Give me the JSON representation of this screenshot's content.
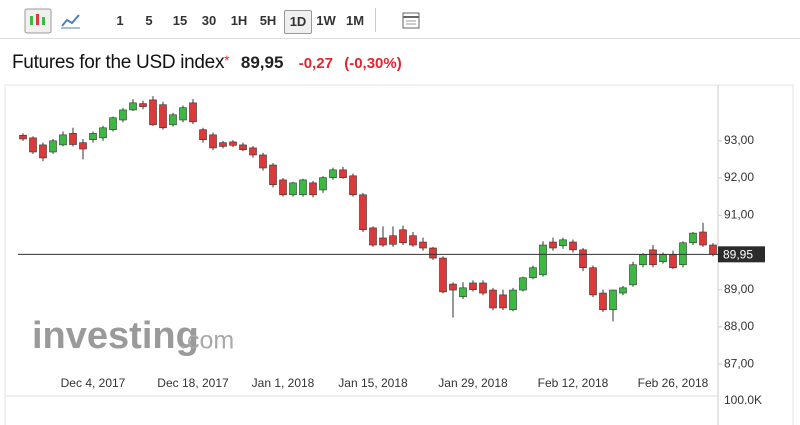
{
  "toolbar": {
    "intervals": [
      "1",
      "5",
      "15",
      "30",
      "1H",
      "5H",
      "1D",
      "1W",
      "1M"
    ],
    "selected": "1D"
  },
  "header": {
    "title": "Futures for the USD index",
    "marker": "*",
    "price": "89,95",
    "change": "-0,27",
    "change_percent": "(-0,30%)"
  },
  "watermark": {
    "brand": "investing",
    "suffix": ".com"
  },
  "chart_data": {
    "type": "candlestick",
    "categories": [
      null,
      null,
      null,
      null,
      null,
      null,
      null,
      "Dec 4, 2017",
      null,
      null,
      null,
      null,
      null,
      null,
      null,
      null,
      null,
      "Dec 18, 2017",
      null,
      null,
      null,
      null,
      null,
      null,
      null,
      null,
      "Jan 1, 2018",
      null,
      null,
      null,
      null,
      null,
      null,
      null,
      null,
      "Jan 15, 2018",
      null,
      null,
      null,
      null,
      null,
      null,
      null,
      null,
      null,
      "Jan 29, 2018",
      null,
      null,
      null,
      null,
      null,
      null,
      null,
      null,
      null,
      "Feb 12, 2018",
      null,
      null,
      null,
      null,
      null,
      null,
      null,
      null,
      null,
      "Feb 26, 2018",
      null,
      null,
      null,
      null
    ],
    "open": [
      93.15,
      93.08,
      92.89,
      92.7,
      92.89,
      93.2,
      92.95,
      93.03,
      93.08,
      93.3,
      93.56,
      93.83,
      94.0,
      94.1,
      93.97,
      93.43,
      93.56,
      94.02,
      93.3,
      93.16,
      92.95,
      92.97,
      92.89,
      92.81,
      92.62,
      92.35,
      91.95,
      91.55,
      91.55,
      91.87,
      91.68,
      92.01,
      92.22,
      92.06,
      91.55,
      90.66,
      90.39,
      90.45,
      90.61,
      90.45,
      90.28,
      90.12,
      89.85,
      89.15,
      88.81,
      89.18,
      89.18,
      88.99,
      88.86,
      88.46,
      88.99,
      89.32,
      89.4,
      90.28,
      90.18,
      90.28,
      90.07,
      89.59,
      88.91,
      88.46,
      88.91,
      89.13,
      89.67,
      90.07,
      89.75,
      89.94,
      89.67,
      90.26,
      90.55,
      90.2
    ],
    "high": [
      93.2,
      93.12,
      92.95,
      93.05,
      93.25,
      93.35,
      93.05,
      93.25,
      93.4,
      93.65,
      93.88,
      94.12,
      94.08,
      94.2,
      94.05,
      93.75,
      93.95,
      94.12,
      93.35,
      93.22,
      93.0,
      93.02,
      92.95,
      92.86,
      92.68,
      92.4,
      92.0,
      91.9,
      91.98,
      91.92,
      92.05,
      92.28,
      92.3,
      92.12,
      91.6,
      90.7,
      90.7,
      90.7,
      90.72,
      90.55,
      90.4,
      90.15,
      89.9,
      89.2,
      89.2,
      89.25,
      89.25,
      89.05,
      89.0,
      89.05,
      89.35,
      89.65,
      90.3,
      90.4,
      90.4,
      90.35,
      90.12,
      89.65,
      89.0,
      89.0,
      89.1,
      89.75,
      89.98,
      90.2,
      90.0,
      90.05,
      90.3,
      90.55,
      90.8,
      90.25
    ],
    "low": [
      93.0,
      92.65,
      92.45,
      92.65,
      92.85,
      92.85,
      92.5,
      92.95,
      93.0,
      93.25,
      93.5,
      93.8,
      93.85,
      93.4,
      93.3,
      93.38,
      93.5,
      93.45,
      92.95,
      92.75,
      92.8,
      92.83,
      92.72,
      92.55,
      92.2,
      91.75,
      91.5,
      91.5,
      91.5,
      91.48,
      91.6,
      91.95,
      91.98,
      91.5,
      90.55,
      90.15,
      90.15,
      90.15,
      90.2,
      90.15,
      90.05,
      89.8,
      88.9,
      88.25,
      88.75,
      88.95,
      88.85,
      88.45,
      88.45,
      88.42,
      88.95,
      89.28,
      89.35,
      90.05,
      90.1,
      90.0,
      89.5,
      88.8,
      88.4,
      88.15,
      88.85,
      89.08,
      89.6,
      89.6,
      89.7,
      89.55,
      89.6,
      90.2,
      90.15,
      89.9
    ],
    "close": [
      93.05,
      92.7,
      92.54,
      93.0,
      93.16,
      92.9,
      92.78,
      93.2,
      93.35,
      93.62,
      93.83,
      94.02,
      93.92,
      93.43,
      93.35,
      93.7,
      93.89,
      93.51,
      93.03,
      92.81,
      92.85,
      92.88,
      92.76,
      92.62,
      92.27,
      91.82,
      91.55,
      91.87,
      91.95,
      91.55,
      92.01,
      92.22,
      92.01,
      91.55,
      90.61,
      90.2,
      90.2,
      90.22,
      90.26,
      90.2,
      90.12,
      89.85,
      88.94,
      88.99,
      89.05,
      89.0,
      88.91,
      88.51,
      88.51,
      88.99,
      89.32,
      89.59,
      90.2,
      90.12,
      90.34,
      90.07,
      89.59,
      88.86,
      88.46,
      88.99,
      89.05,
      89.67,
      89.94,
      89.67,
      89.94,
      89.59,
      90.26,
      90.52,
      90.2,
      89.95
    ],
    "up_color": "#3db843",
    "down_color": "#dc3a3a",
    "ylim": [
      86.17,
      94.5
    ],
    "yticks": [
      {
        "value": 93,
        "label": "93,00"
      },
      {
        "value": 92,
        "label": "92,00"
      },
      {
        "value": 91,
        "label": "91,00"
      },
      {
        "value": 89,
        "label": "89,00"
      },
      {
        "value": 88,
        "label": "88,00"
      },
      {
        "value": 87,
        "label": "87,00"
      }
    ],
    "last_price": {
      "value": 89.95,
      "label": "89,95"
    },
    "volume_label": "100.0K"
  }
}
